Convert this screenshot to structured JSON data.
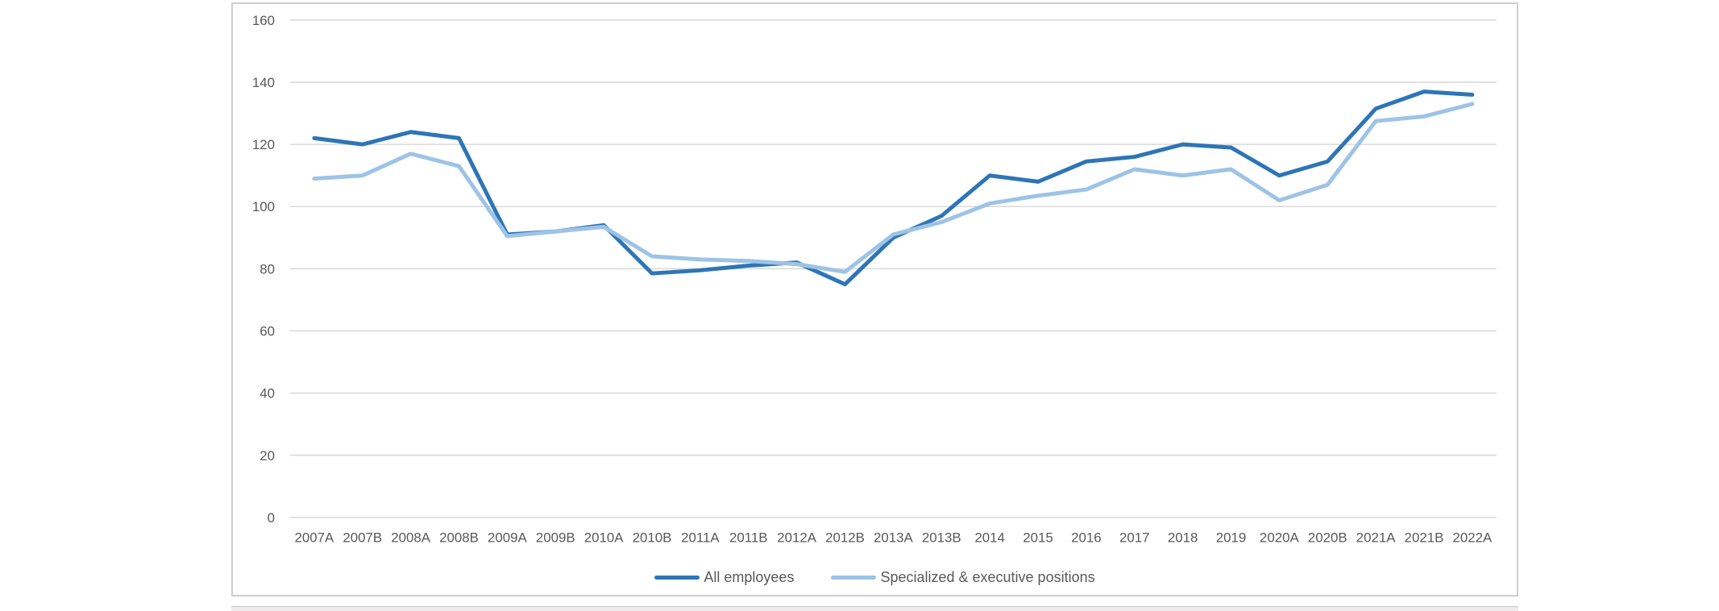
{
  "chart_data": {
    "type": "line",
    "title": "",
    "categories": [
      "2007A",
      "2007B",
      "2008A",
      "2008B",
      "2009A",
      "2009B",
      "2010A",
      "2010B",
      "2011A",
      "2011B",
      "2012A",
      "2012B",
      "2013A",
      "2013B",
      "2014",
      "2015",
      "2016",
      "2017",
      "2018",
      "2019",
      "2020A",
      "2020B",
      "2021A",
      "2021B",
      "2022A"
    ],
    "series": [
      {
        "name": "All employees",
        "color": "#2E75B6",
        "values": [
          122,
          120,
          124,
          122,
          91,
          92,
          94,
          78.5,
          79.5,
          81,
          82,
          75,
          90,
          97,
          110,
          108,
          114.5,
          116,
          120,
          119,
          110,
          114.5,
          131.5,
          137,
          136
        ]
      },
      {
        "name": "Specialized & executive positions",
        "color": "#9DC3E6",
        "values": [
          109,
          110,
          117,
          113,
          90.5,
          92,
          93.5,
          84,
          83,
          82.5,
          81.5,
          79,
          91,
          95,
          101,
          103.5,
          105.5,
          112,
          110,
          112,
          102,
          107,
          127.5,
          129,
          133
        ]
      }
    ],
    "xlabel": "",
    "ylabel": "",
    "ylim": [
      0,
      160
    ],
    "yticks": [
      0,
      20,
      40,
      60,
      80,
      100,
      120,
      140,
      160
    ],
    "grid": "horizontal",
    "legend_position": "bottom"
  },
  "colors": {
    "gridline": "#D9D9D9",
    "axis_text": "#595959",
    "chart_border": "#D0CECE",
    "background": "#FFFFFF"
  }
}
